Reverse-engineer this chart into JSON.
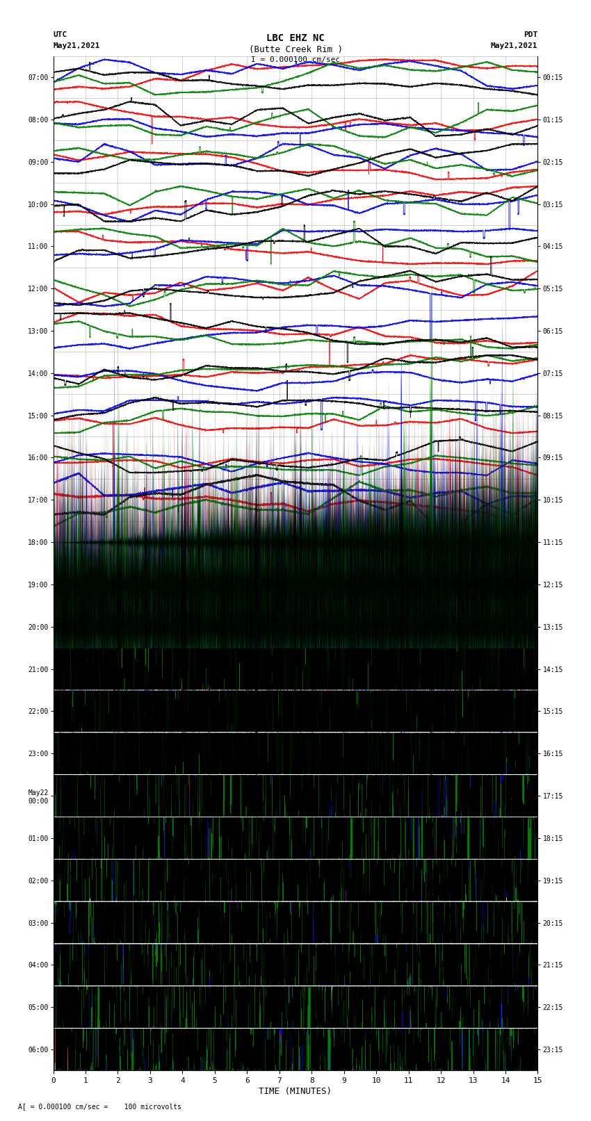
{
  "title_line1": "LBC EHZ NC",
  "title_line2": "(Butte Creek Rim )",
  "title_line3": "I = 0.000100 cm/sec",
  "label_utc": "UTC",
  "label_date_left": "May21,2021",
  "label_pdt": "PDT",
  "label_date_right": "May21,2021",
  "xlabel": "TIME (MINUTES)",
  "footnote": "= 0.000100 cm/sec =    100 microvolts",
  "xlim": [
    0,
    15
  ],
  "xticks": [
    0,
    1,
    2,
    3,
    4,
    5,
    6,
    7,
    8,
    9,
    10,
    11,
    12,
    13,
    14,
    15
  ],
  "num_rows": 24,
  "row_labels_left": [
    "07:00",
    "08:00",
    "09:00",
    "10:00",
    "11:00",
    "12:00",
    "13:00",
    "14:00",
    "15:00",
    "16:00",
    "17:00",
    "18:00",
    "19:00",
    "20:00",
    "21:00",
    "22:00",
    "23:00",
    "May22\n00:00",
    "01:00",
    "02:00",
    "03:00",
    "04:00",
    "05:00",
    "06:00"
  ],
  "row_labels_right": [
    "00:15",
    "01:15",
    "02:15",
    "03:15",
    "04:15",
    "05:15",
    "06:15",
    "07:15",
    "08:15",
    "09:15",
    "10:15",
    "11:15",
    "12:15",
    "13:15",
    "14:15",
    "15:15",
    "16:15",
    "17:15",
    "18:15",
    "19:15",
    "20:15",
    "21:15",
    "22:15",
    "23:15"
  ],
  "bg_color": "white",
  "colors": [
    "red",
    "blue",
    "green",
    "black"
  ],
  "seed": 42
}
